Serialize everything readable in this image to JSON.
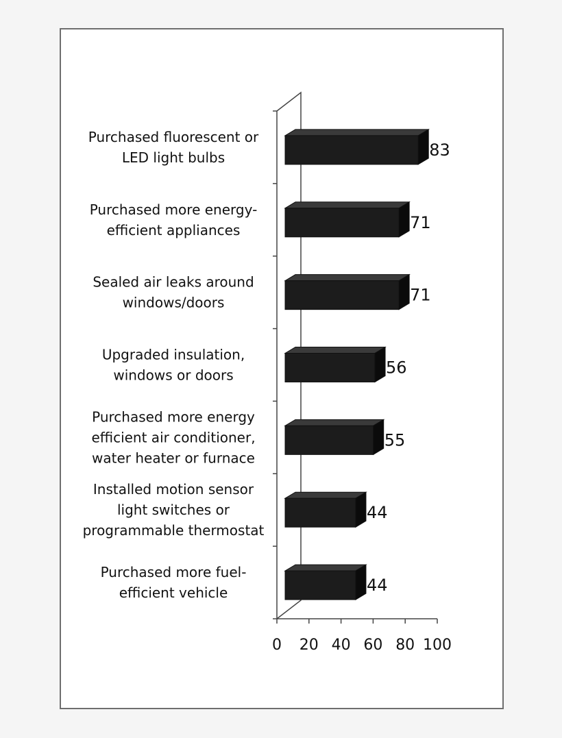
{
  "chart_data": {
    "type": "bar",
    "orientation": "horizontal",
    "three_d": true,
    "title": "",
    "xlabel": "",
    "ylabel": "",
    "xlim": [
      0,
      100
    ],
    "x_ticks": [
      "0",
      "20",
      "40",
      "60",
      "80",
      "100"
    ],
    "grid": false,
    "legend": "none",
    "bar_color": "#1c1c1c",
    "categories": [
      [
        "Purchased fluorescent or",
        "LED light bulbs"
      ],
      [
        "Purchased more energy-",
        "efficient appliances"
      ],
      [
        "Sealed air leaks around",
        "windows/doors"
      ],
      [
        "Upgraded insulation,",
        "windows or doors"
      ],
      [
        "Purchased more energy",
        "efficient air conditioner,",
        "water heater or furnace"
      ],
      [
        "Installed motion sensor",
        "light switches or",
        "programmable thermostat"
      ],
      [
        "Purchased more fuel-",
        "efficient vehicle"
      ]
    ],
    "values": [
      83,
      71,
      71,
      56,
      55,
      44,
      44
    ],
    "data_labels": [
      "83",
      "71",
      "71",
      "56",
      "55",
      "44",
      "44"
    ]
  }
}
